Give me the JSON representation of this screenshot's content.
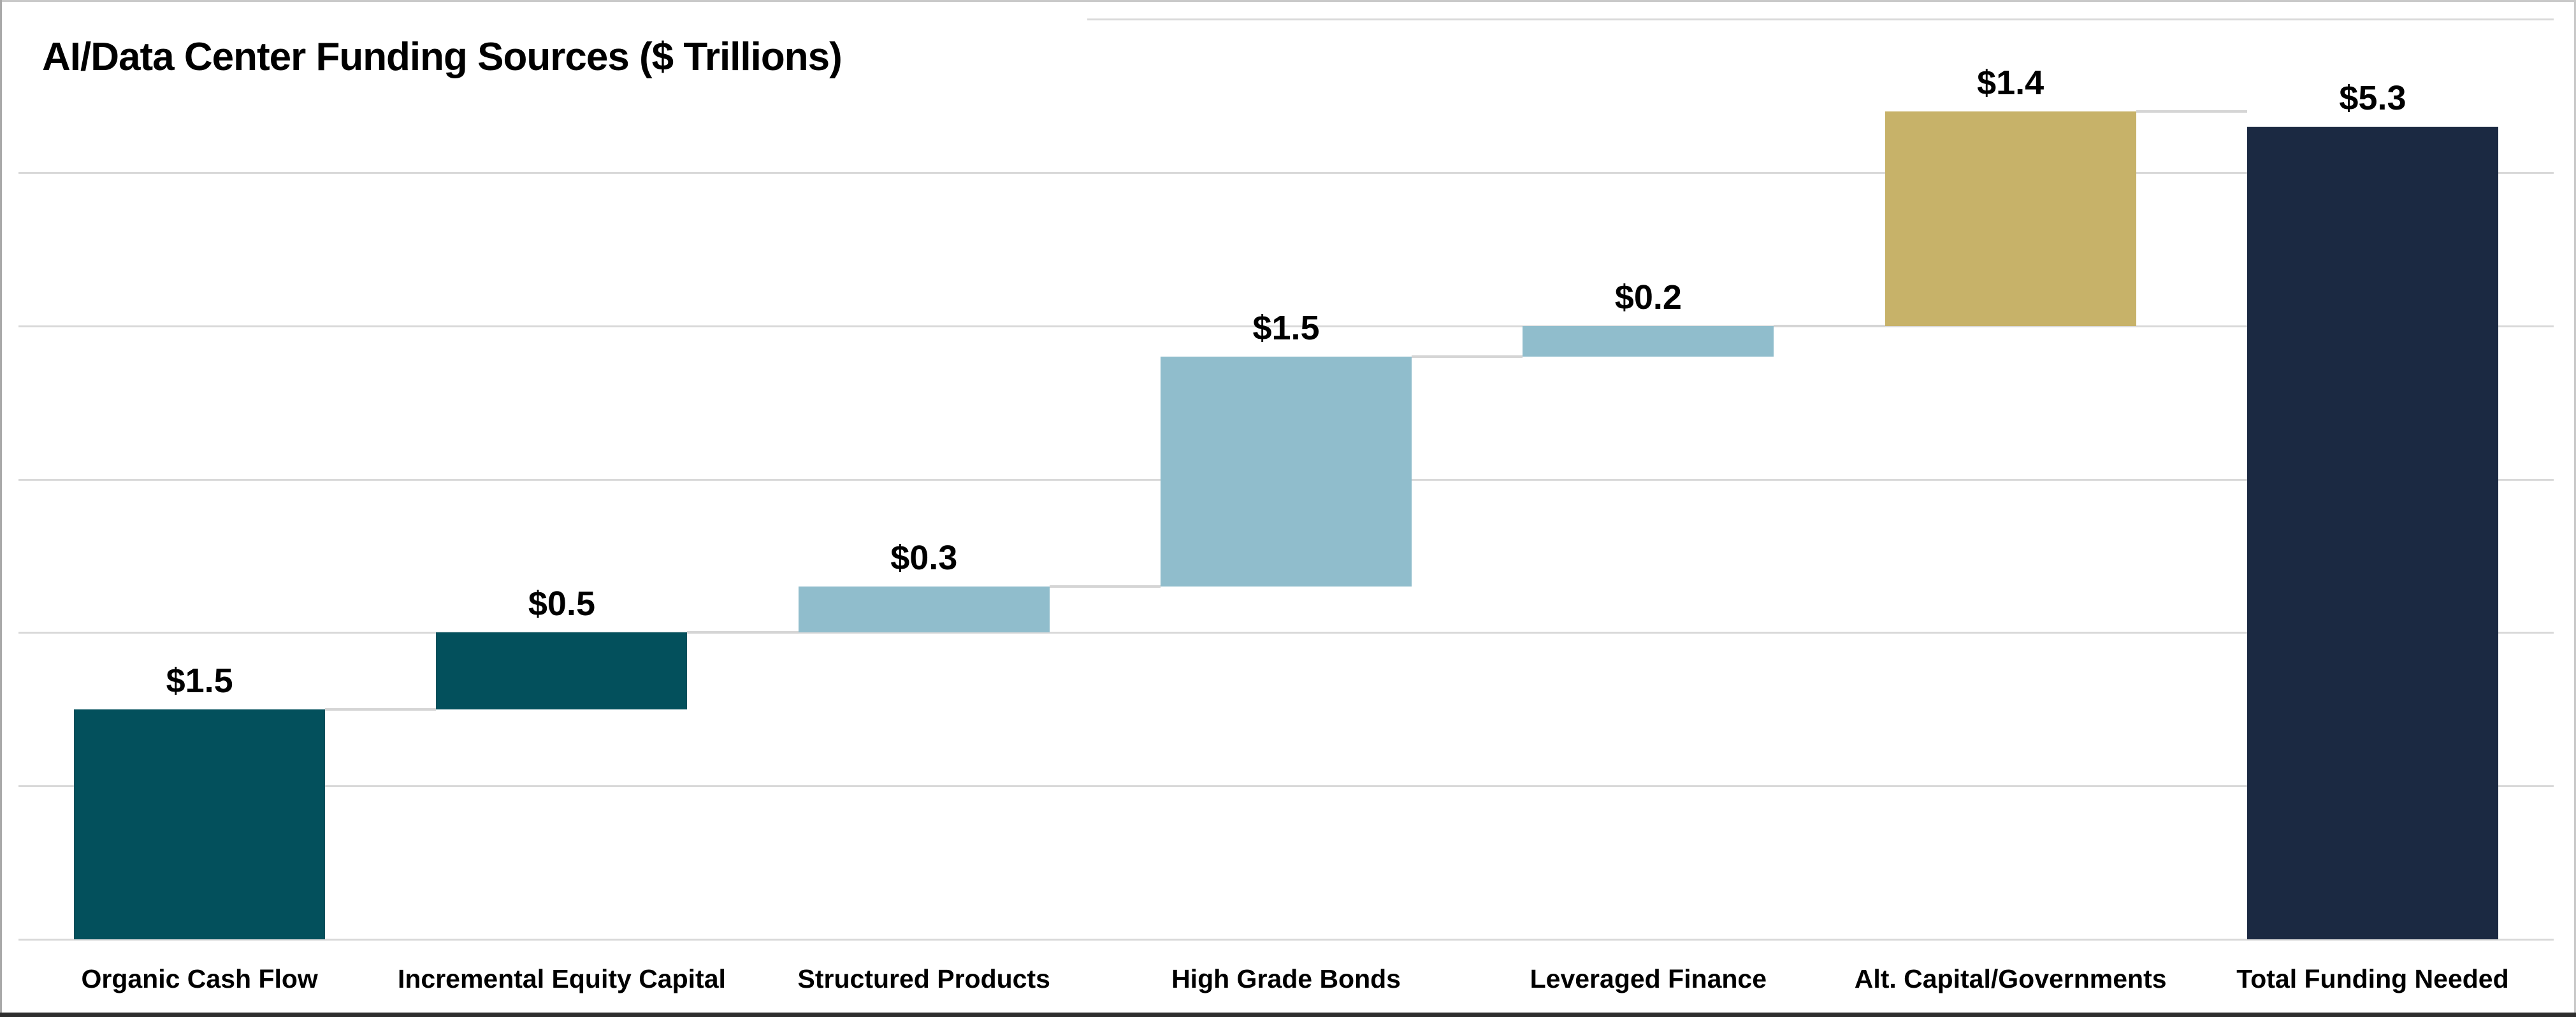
{
  "title": {
    "text": "AI/Data Center Funding Sources ($ Trillions)"
  },
  "chart_data": {
    "type": "bar",
    "subtype": "waterfall",
    "title": "AI/Data Center Funding Sources ($ Trillions)",
    "units": "$ Trillions",
    "categories": [
      "Organic Cash Flow",
      "Incremental Equity Capital",
      "Structured Products",
      "High Grade Bonds",
      "Leveraged Finance",
      "Alt. Capital/Governments",
      "Total Funding Needed"
    ],
    "series": [
      {
        "name": "AI/Data Center Funding Sources",
        "values": [
          1.5,
          0.5,
          0.3,
          1.5,
          0.2,
          1.4,
          5.3
        ]
      }
    ],
    "bars": [
      {
        "category": "Organic Cash Flow",
        "value_label": "$1.5",
        "value": 1.5,
        "start": 0.0,
        "end": 1.5,
        "color": "#03505c",
        "role": "source"
      },
      {
        "category": "Incremental Equity Capital",
        "value_label": "$0.5",
        "value": 0.5,
        "start": 1.5,
        "end": 2.0,
        "color": "#03505c",
        "role": "source"
      },
      {
        "category": "Structured Products",
        "value_label": "$0.3",
        "value": 0.3,
        "start": 2.0,
        "end": 2.3,
        "color": "#90bdcc",
        "role": "source"
      },
      {
        "category": "High Grade Bonds",
        "value_label": "$1.5",
        "value": 1.5,
        "start": 2.3,
        "end": 3.8,
        "color": "#90bdcc",
        "role": "source"
      },
      {
        "category": "Leveraged Finance",
        "value_label": "$0.2",
        "value": 0.2,
        "start": 3.8,
        "end": 4.0,
        "color": "#90bdcc",
        "role": "source"
      },
      {
        "category": "Alt. Capital/Governments",
        "value_label": "$1.4",
        "value": 1.4,
        "start": 4.0,
        "end": 5.4,
        "color": "#c7b269",
        "role": "source"
      },
      {
        "category": "Total Funding Needed",
        "value_label": "$5.3",
        "value": 5.3,
        "start": 0.0,
        "end": 5.3,
        "color": "#1b2942",
        "role": "total"
      }
    ],
    "ylim": [
      0,
      6
    ],
    "gridline_step": 1,
    "grid": "on",
    "legend": "none",
    "xlabel": "",
    "ylabel": "",
    "colors": {
      "dark_teal": "#03505c",
      "light_blue": "#90bdcc",
      "gold": "#c7b269",
      "navy": "#1b2942",
      "gridline": "#d9d9d9",
      "connector": "#d5d5d5",
      "label_text": "#000000",
      "background": "#ffffff"
    }
  }
}
